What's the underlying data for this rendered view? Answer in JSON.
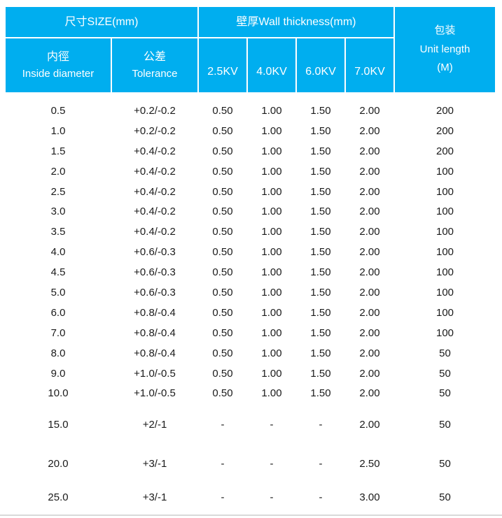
{
  "accent_color": "#00AEEF",
  "header": {
    "size_group": "尺寸SIZE(mm)",
    "wall_group": "壁厚Wall thickness(mm)",
    "package": {
      "zh": "包装",
      "en": "Unit length",
      "unit": "(M)"
    },
    "inside_diameter": {
      "zh": "内徑",
      "en": "Inside diameter"
    },
    "tolerance": {
      "zh": "公差",
      "en": "Tolerance"
    },
    "kv_columns": [
      "2.5KV",
      "4.0KV",
      "6.0KV",
      "7.0KV"
    ]
  },
  "table": {
    "rows": [
      {
        "gap": 0,
        "cells": [
          "0.5",
          "+0.2/-0.2",
          "0.50",
          "1.00",
          "1.50",
          "2.00",
          "200"
        ]
      },
      {
        "gap": 0,
        "cells": [
          "1.0",
          "+0.2/-0.2",
          "0.50",
          "1.00",
          "1.50",
          "2.00",
          "200"
        ]
      },
      {
        "gap": 0,
        "cells": [
          "1.5",
          "+0.4/-0.2",
          "0.50",
          "1.00",
          "1.50",
          "2.00",
          "200"
        ]
      },
      {
        "gap": 0,
        "cells": [
          "2.0",
          "+0.4/-0.2",
          "0.50",
          "1.00",
          "1.50",
          "2.00",
          "100"
        ]
      },
      {
        "gap": 0,
        "cells": [
          "2.5",
          "+0.4/-0.2",
          "0.50",
          "1.00",
          "1.50",
          "2.00",
          "100"
        ]
      },
      {
        "gap": 0,
        "cells": [
          "3.0",
          "+0.4/-0.2",
          "0.50",
          "1.00",
          "1.50",
          "2.00",
          "100"
        ]
      },
      {
        "gap": 0,
        "cells": [
          "3.5",
          "+0.4/-0.2",
          "0.50",
          "1.00",
          "1.50",
          "2.00",
          "100"
        ]
      },
      {
        "gap": 0,
        "cells": [
          "4.0",
          "+0.6/-0.3",
          "0.50",
          "1.00",
          "1.50",
          "2.00",
          "100"
        ]
      },
      {
        "gap": 0,
        "cells": [
          "4.5",
          "+0.6/-0.3",
          "0.50",
          "1.00",
          "1.50",
          "2.00",
          "100"
        ]
      },
      {
        "gap": 0,
        "cells": [
          "5.0",
          "+0.6/-0.3",
          "0.50",
          "1.00",
          "1.50",
          "2.00",
          "100"
        ]
      },
      {
        "gap": 0,
        "cells": [
          "6.0",
          "+0.8/-0.4",
          "0.50",
          "1.00",
          "1.50",
          "2.00",
          "100"
        ]
      },
      {
        "gap": 0,
        "cells": [
          "7.0",
          "+0.8/-0.4",
          "0.50",
          "1.00",
          "1.50",
          "2.00",
          "100"
        ]
      },
      {
        "gap": 0,
        "cells": [
          "8.0",
          "+0.8/-0.4",
          "0.50",
          "1.00",
          "1.50",
          "2.00",
          "50"
        ]
      },
      {
        "gap": 0,
        "cells": [
          "9.0",
          "+1.0/-0.5",
          "0.50",
          "1.00",
          "1.50",
          "2.00",
          "50"
        ]
      },
      {
        "gap": 0,
        "cells": [
          "10.0",
          "+1.0/-0.5",
          "0.50",
          "1.00",
          "1.50",
          "2.00",
          "50"
        ]
      },
      {
        "gap": 1,
        "cells": [
          "15.0",
          "+2/-1",
          "-",
          "-",
          "-",
          "2.00",
          "50"
        ]
      },
      {
        "gap": 2,
        "cells": [
          "20.0",
          "+3/-1",
          "-",
          "-",
          "-",
          "2.50",
          "50"
        ]
      },
      {
        "gap": 3,
        "cells": [
          "25.0",
          "+3/-1",
          "-",
          "-",
          "-",
          "3.00",
          "50"
        ]
      }
    ]
  },
  "chart_data": {
    "type": "table",
    "title": "尺寸SIZE(mm) / 壁厚Wall thickness(mm) / 包装 Unit length (M)",
    "columns": [
      "内徑 Inside diameter",
      "公差 Tolerance",
      "2.5KV",
      "4.0KV",
      "6.0KV",
      "7.0KV",
      "包装 Unit length (M)"
    ],
    "rows": [
      [
        "0.5",
        "+0.2/-0.2",
        "0.50",
        "1.00",
        "1.50",
        "2.00",
        "200"
      ],
      [
        "1.0",
        "+0.2/-0.2",
        "0.50",
        "1.00",
        "1.50",
        "2.00",
        "200"
      ],
      [
        "1.5",
        "+0.4/-0.2",
        "0.50",
        "1.00",
        "1.50",
        "2.00",
        "200"
      ],
      [
        "2.0",
        "+0.4/-0.2",
        "0.50",
        "1.00",
        "1.50",
        "2.00",
        "100"
      ],
      [
        "2.5",
        "+0.4/-0.2",
        "0.50",
        "1.00",
        "1.50",
        "2.00",
        "100"
      ],
      [
        "3.0",
        "+0.4/-0.2",
        "0.50",
        "1.00",
        "1.50",
        "2.00",
        "100"
      ],
      [
        "3.5",
        "+0.4/-0.2",
        "0.50",
        "1.00",
        "1.50",
        "2.00",
        "100"
      ],
      [
        "4.0",
        "+0.6/-0.3",
        "0.50",
        "1.00",
        "1.50",
        "2.00",
        "100"
      ],
      [
        "4.5",
        "+0.6/-0.3",
        "0.50",
        "1.00",
        "1.50",
        "2.00",
        "100"
      ],
      [
        "5.0",
        "+0.6/-0.3",
        "0.50",
        "1.00",
        "1.50",
        "2.00",
        "100"
      ],
      [
        "6.0",
        "+0.8/-0.4",
        "0.50",
        "1.00",
        "1.50",
        "2.00",
        "100"
      ],
      [
        "7.0",
        "+0.8/-0.4",
        "0.50",
        "1.00",
        "1.50",
        "2.00",
        "100"
      ],
      [
        "8.0",
        "+0.8/-0.4",
        "0.50",
        "1.00",
        "1.50",
        "2.00",
        "50"
      ],
      [
        "9.0",
        "+1.0/-0.5",
        "0.50",
        "1.00",
        "1.50",
        "2.00",
        "50"
      ],
      [
        "10.0",
        "+1.0/-0.5",
        "0.50",
        "1.00",
        "1.50",
        "2.00",
        "50"
      ],
      [
        "15.0",
        "+2/-1",
        "-",
        "-",
        "-",
        "2.00",
        "50"
      ],
      [
        "20.0",
        "+3/-1",
        "-",
        "-",
        "-",
        "2.50",
        "50"
      ],
      [
        "25.0",
        "+3/-1",
        "-",
        "-",
        "-",
        "3.00",
        "50"
      ]
    ]
  }
}
